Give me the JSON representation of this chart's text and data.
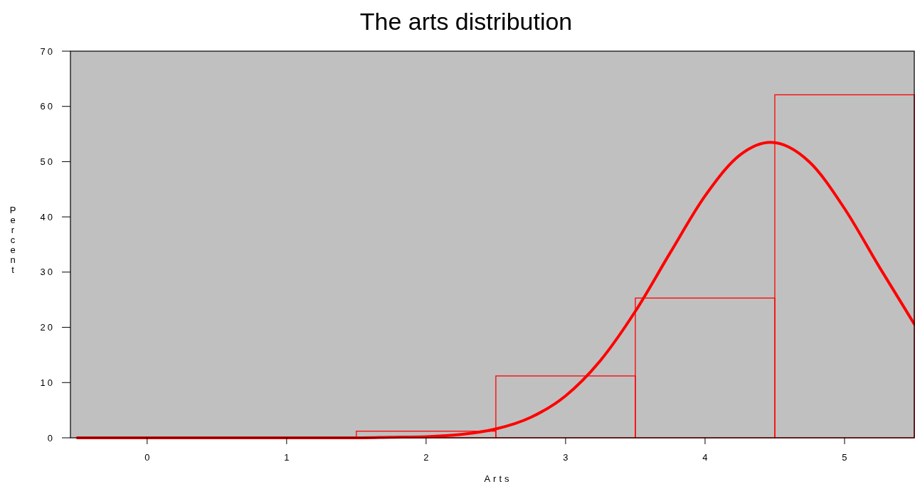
{
  "chart_data": {
    "type": "histogram",
    "title": "The arts distribution",
    "xlabel": "Arts",
    "ylabel": "Percent",
    "bins": [
      -0.5,
      0.5,
      1.5,
      2.5,
      3.5,
      4.5,
      5.5
    ],
    "values": [
      0,
      0,
      1.2,
      11.2,
      25.3,
      62.1
    ],
    "color": "#ff0000",
    "series": [
      {
        "type": "line",
        "color": "#ff0000",
        "x": [
          -0.5,
          0.5,
          1,
          1.5,
          1.75,
          2,
          2.25,
          2.5,
          2.75,
          3,
          3.25,
          3.5,
          3.75,
          4,
          4.25,
          4.47,
          4.75,
          5,
          5.25,
          5.5
        ],
        "values": [
          0,
          0,
          0,
          0,
          0.1,
          0.2,
          0.6,
          1.6,
          3.7,
          7.6,
          14,
          22.9,
          33.5,
          43.8,
          51.2,
          53.5,
          49.9,
          41.5,
          30.9,
          20.6
        ]
      }
    ],
    "xlim": [
      -0.55,
      5.5
    ],
    "xticks": [
      0,
      1,
      2,
      3,
      4,
      5
    ],
    "ylim": [
      0,
      70
    ],
    "yticks": [
      0,
      10,
      20,
      30,
      40,
      50,
      60,
      70
    ],
    "grid": false
  }
}
